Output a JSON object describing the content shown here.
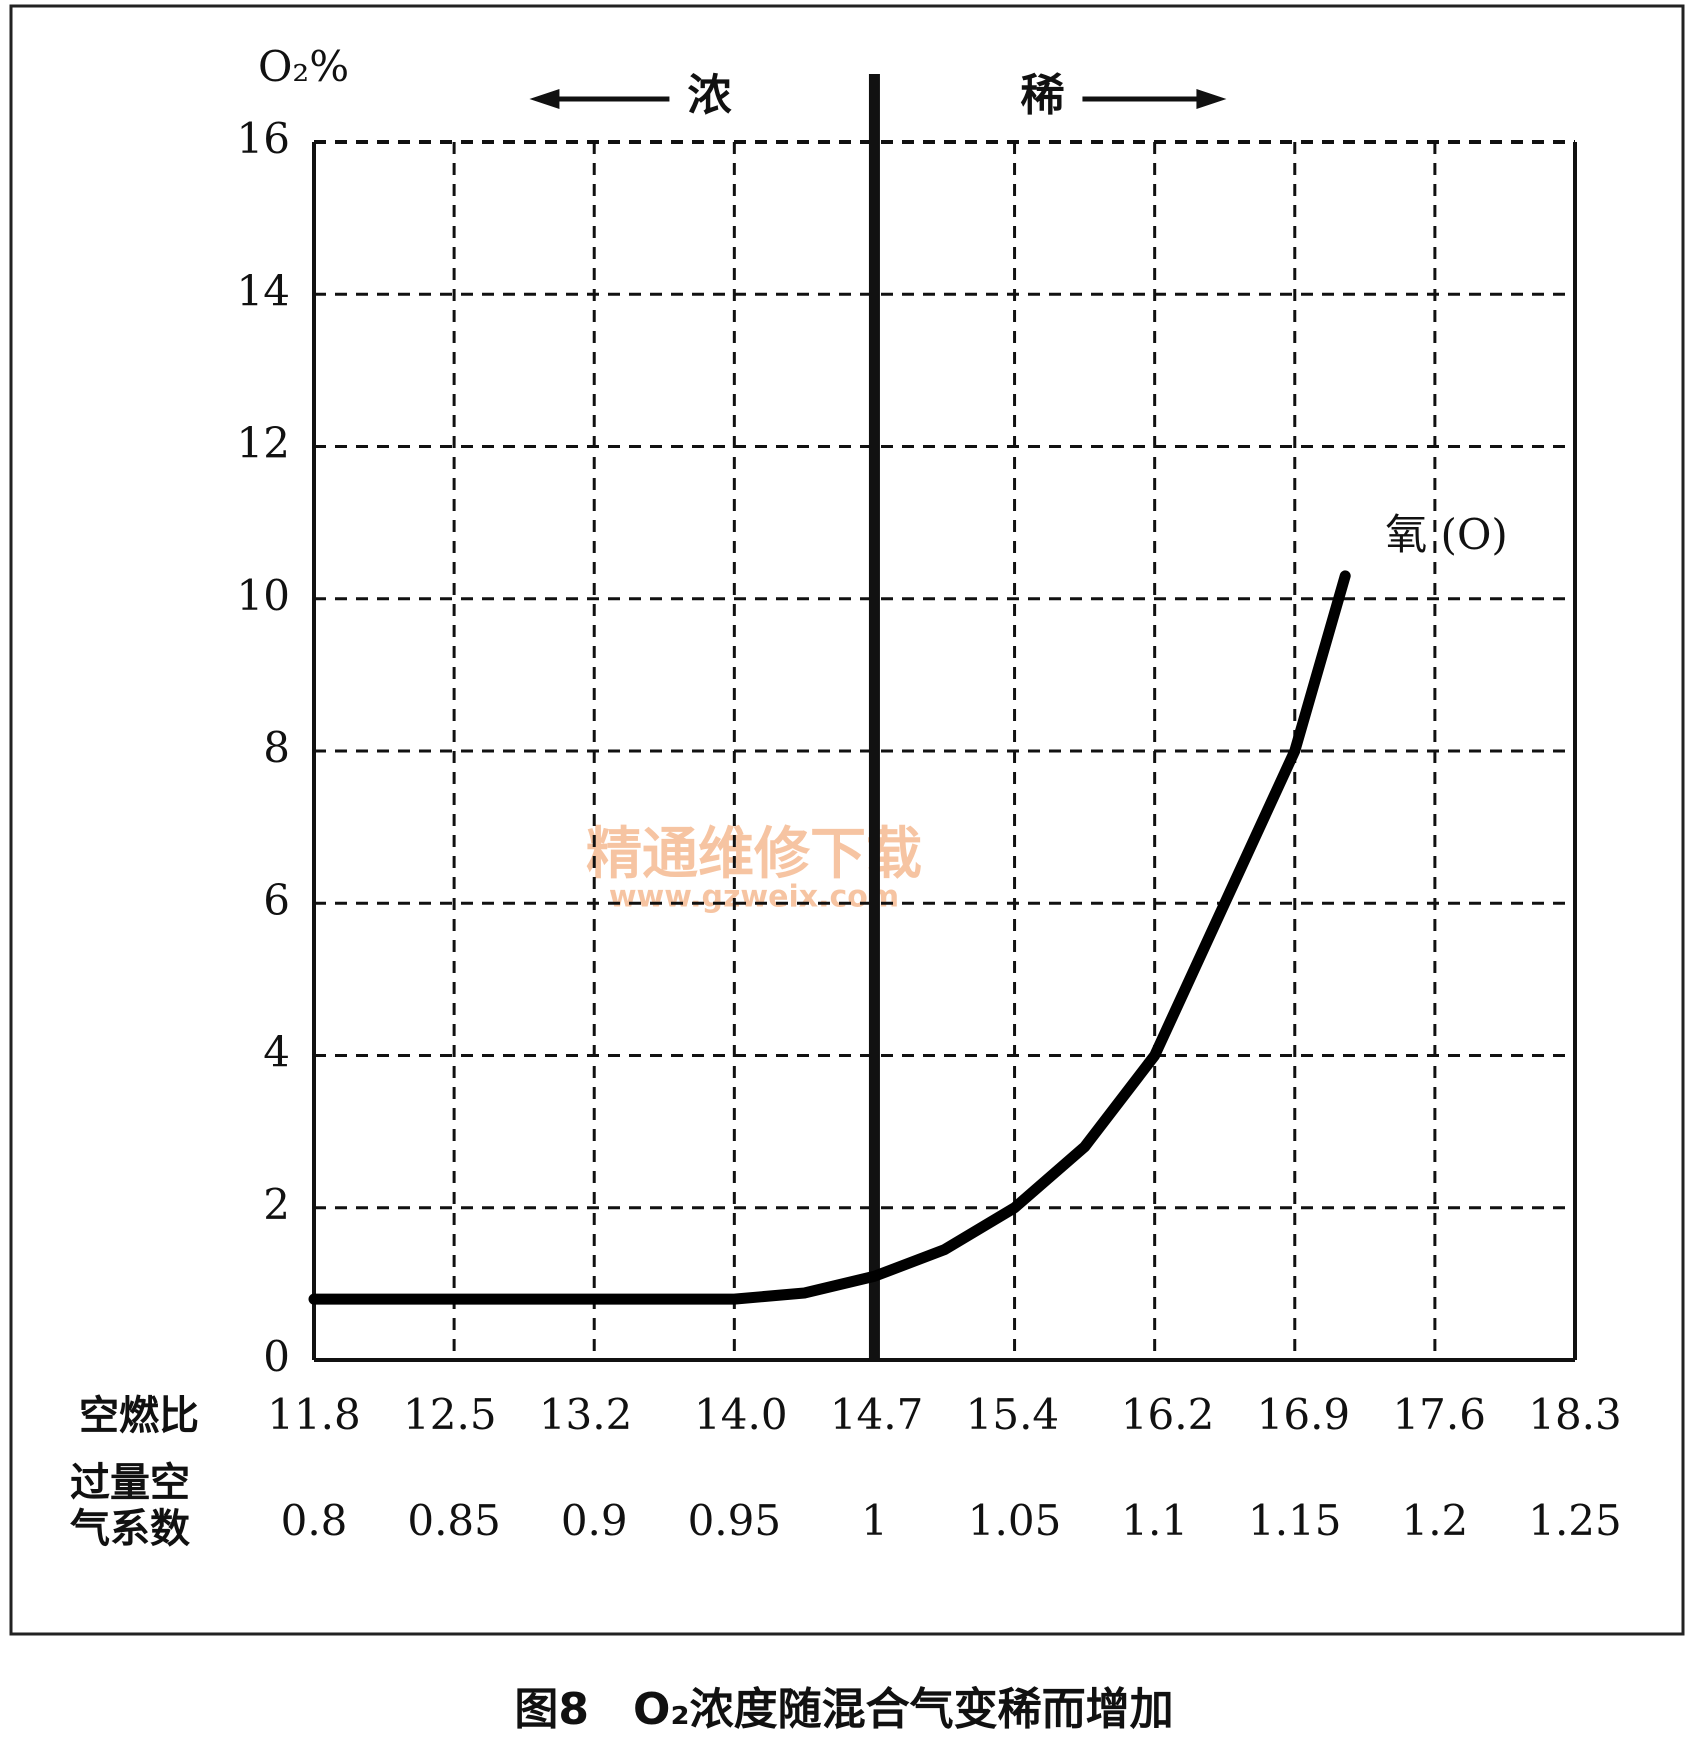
{
  "chart_data": {
    "type": "line",
    "title": "图8　O₂浓度随混合气变稀而增加",
    "y_label": "O₂%",
    "x_label": "过量空气系数",
    "x2_label": "空燃比",
    "x": [
      0.8,
      0.85,
      0.9,
      0.95,
      0.975,
      1.0,
      1.025,
      1.05,
      1.075,
      1.1,
      1.125,
      1.15,
      1.168
    ],
    "series": [
      {
        "name": "氧 (O)",
        "color": "#000000",
        "values": [
          0.8,
          0.8,
          0.8,
          0.8,
          0.88,
          1.1,
          1.45,
          2.0,
          2.8,
          4.0,
          6.0,
          8.0,
          10.3
        ]
      }
    ],
    "xlim": [
      0.8,
      1.25
    ],
    "xticks": [
      0.8,
      0.85,
      0.9,
      0.95,
      1,
      1.05,
      1.1,
      1.15,
      1.2,
      1.25
    ],
    "x2lim": [
      11.8,
      18.3
    ],
    "x2ticks": [
      11.8,
      12.5,
      13.2,
      {
        "value": 14,
        "label": "14.0"
      },
      14.7,
      15.4,
      16.2,
      16.9,
      17.6,
      18.3
    ],
    "ylim": [
      0,
      16
    ],
    "yticks": [
      0,
      2,
      4,
      6,
      8,
      10,
      12,
      14,
      16
    ],
    "grid": true,
    "divider": {
      "x": 1,
      "rich_label": "浓",
      "lean_label": "稀"
    },
    "watermark": [
      "精通维修下载",
      "www.gzweix.com"
    ]
  }
}
